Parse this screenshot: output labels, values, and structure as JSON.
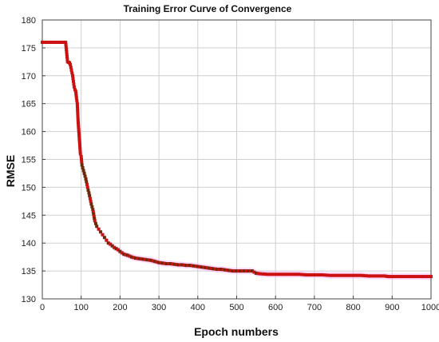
{
  "chart_data": {
    "type": "scatter",
    "title": "Training Error Curve of Convergence",
    "xlabel": "Epoch numbers",
    "ylabel": "RMSE",
    "xlim": [
      0,
      1000
    ],
    "ylim": [
      130,
      180
    ],
    "xticks": [
      0,
      100,
      200,
      300,
      400,
      500,
      600,
      700,
      800,
      900,
      1000
    ],
    "yticks": [
      130,
      135,
      140,
      145,
      150,
      155,
      160,
      165,
      170,
      175,
      180
    ],
    "grid": true,
    "legend": "none",
    "colors": {
      "marker": "#cc1111",
      "marker_dark": "#6b2a0a",
      "band": "#ff99ff",
      "grid": "#cfcfcf",
      "axis": "#444444"
    },
    "series": [
      {
        "x": [
          0,
          10,
          20,
          30,
          40,
          50,
          60,
          65,
          68,
          70,
          72,
          75,
          78,
          80,
          82,
          84,
          86,
          88,
          90,
          92,
          94,
          96,
          98,
          100,
          102,
          104,
          106,
          108,
          110,
          112,
          115,
          118,
          120,
          123,
          126,
          130,
          135,
          140,
          145,
          150,
          155,
          160,
          165,
          170,
          175,
          180,
          185,
          190,
          195,
          200,
          210,
          220,
          230,
          240,
          250,
          260,
          270,
          280,
          290,
          300,
          310,
          320,
          330,
          340,
          350,
          360,
          370,
          380,
          390,
          400,
          410,
          420,
          430,
          440,
          450,
          460,
          470,
          480,
          490,
          500,
          510,
          520,
          530,
          540,
          545,
          550,
          560,
          580,
          600,
          620,
          640,
          660,
          680,
          700,
          720,
          740,
          760,
          780,
          800,
          820,
          840,
          860,
          880,
          890,
          900,
          920,
          940,
          960,
          980,
          1000
        ],
        "y": [
          176,
          176,
          176,
          176,
          176,
          176,
          176,
          172.5,
          172.4,
          172.3,
          172,
          171,
          170,
          169,
          168,
          167.5,
          167.2,
          166,
          165,
          162,
          160,
          158,
          156,
          155.5,
          154,
          153.5,
          153,
          152.5,
          152,
          151.5,
          150.5,
          149.5,
          149,
          148,
          147,
          146,
          144,
          143,
          142.5,
          142,
          141.5,
          141,
          140.5,
          140,
          139.8,
          139.5,
          139.2,
          139,
          138.8,
          138.5,
          138,
          137.8,
          137.5,
          137.3,
          137.2,
          137.1,
          137,
          136.9,
          136.7,
          136.5,
          136.4,
          136.3,
          136.3,
          136.2,
          136.1,
          136.1,
          136,
          136,
          135.9,
          135.8,
          135.7,
          135.6,
          135.5,
          135.4,
          135.3,
          135.3,
          135.2,
          135.1,
          135,
          135,
          135,
          135,
          135,
          135,
          134.8,
          134.6,
          134.5,
          134.4,
          134.4,
          134.4,
          134.4,
          134.4,
          134.3,
          134.3,
          134.3,
          134.2,
          134.2,
          134.2,
          134.2,
          134.2,
          134.1,
          134.1,
          134.1,
          134,
          134,
          134,
          134,
          134,
          134,
          134
        ]
      }
    ]
  }
}
